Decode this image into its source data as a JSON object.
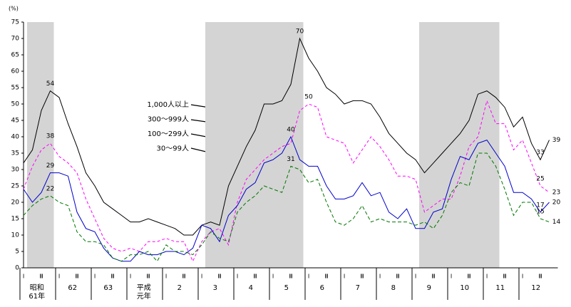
{
  "chart_data": {
    "type": "line",
    "y_label": "(%)",
    "ylim": [
      0,
      75
    ],
    "yticks": [
      0,
      5,
      10,
      15,
      20,
      25,
      30,
      35,
      40,
      45,
      50,
      55,
      60,
      65,
      70,
      75
    ],
    "categories": [
      "Ⅰ",
      null,
      "Ⅲ",
      null,
      "Ⅰ",
      null,
      "Ⅲ",
      null,
      "Ⅰ",
      null,
      "Ⅲ",
      null,
      "Ⅰ",
      null,
      "Ⅲ",
      null,
      "Ⅰ",
      null,
      "Ⅲ",
      null,
      "Ⅰ",
      null,
      "Ⅲ",
      null,
      "Ⅰ",
      null,
      "Ⅲ",
      null,
      "Ⅰ",
      null,
      "Ⅲ",
      null,
      "Ⅰ",
      null,
      "Ⅲ",
      null,
      "Ⅰ",
      null,
      "Ⅲ",
      null,
      "Ⅰ",
      null,
      "Ⅲ",
      null,
      "Ⅰ",
      null,
      "Ⅲ",
      null,
      "Ⅰ",
      null,
      "Ⅲ",
      null,
      "Ⅰ",
      null,
      "Ⅲ",
      null,
      "Ⅰ",
      null,
      "Ⅲ",
      null
    ],
    "year_labels": [
      [
        "昭和",
        "61年"
      ],
      [
        "62"
      ],
      [
        "63"
      ],
      [
        "平成",
        "元年"
      ],
      [
        "2"
      ],
      [
        "3"
      ],
      [
        "4"
      ],
      [
        "5"
      ],
      [
        "6"
      ],
      [
        "7"
      ],
      [
        "8"
      ],
      [
        "9"
      ],
      [
        "10"
      ],
      [
        "11"
      ],
      [
        "12"
      ]
    ],
    "shaded_periods": [
      [
        0,
        3
      ],
      [
        20,
        31
      ],
      [
        44,
        53
      ]
    ],
    "series": [
      {
        "name": "1,000人以上",
        "color": "#000000",
        "dash": "none",
        "values": [
          32,
          36,
          48,
          54,
          52,
          44,
          37,
          29,
          25,
          20,
          18,
          16,
          14,
          14,
          15,
          14,
          13,
          12,
          10,
          10,
          13,
          14,
          13,
          25,
          31,
          37,
          42,
          50,
          50,
          51,
          56,
          70,
          64,
          60,
          55,
          53,
          50,
          51,
          51,
          50,
          46,
          41,
          38,
          35,
          33,
          29,
          32,
          35,
          38,
          41,
          45,
          53,
          54,
          52,
          49,
          43,
          46,
          38,
          33,
          39
        ],
        "value_labels": [
          null,
          null,
          null,
          "54",
          null,
          null,
          null,
          null,
          null,
          null,
          null,
          null,
          null,
          null,
          null,
          null,
          null,
          null,
          null,
          null,
          null,
          null,
          null,
          null,
          null,
          null,
          null,
          null,
          null,
          null,
          null,
          "70",
          null,
          null,
          null,
          null,
          null,
          null,
          null,
          null,
          null,
          null,
          null,
          null,
          null,
          null,
          null,
          null,
          null,
          null,
          null,
          null,
          null,
          null,
          null,
          null,
          null,
          null,
          "33",
          "39"
        ]
      },
      {
        "name": "300～999人",
        "color": "#ff00ff",
        "dash": "4,3",
        "values": [
          24,
          31,
          36,
          38,
          34,
          32,
          29,
          21,
          15,
          9,
          6,
          5,
          6,
          5,
          8,
          8,
          9,
          8,
          8,
          2,
          8,
          11,
          12,
          7,
          20,
          27,
          30,
          33,
          35,
          37,
          38,
          48,
          50,
          49,
          40,
          39,
          38,
          32,
          36,
          40,
          37,
          33,
          28,
          28,
          27,
          17,
          19,
          21,
          21,
          28,
          37,
          40,
          51,
          44,
          44,
          36,
          39,
          32,
          25,
          23
        ],
        "value_labels": [
          null,
          null,
          null,
          "38",
          null,
          null,
          null,
          null,
          null,
          null,
          null,
          null,
          null,
          null,
          null,
          null,
          null,
          null,
          null,
          null,
          null,
          null,
          null,
          null,
          null,
          null,
          null,
          null,
          null,
          null,
          null,
          null,
          "50",
          null,
          null,
          null,
          null,
          null,
          null,
          null,
          null,
          null,
          null,
          null,
          null,
          null,
          null,
          null,
          null,
          null,
          null,
          null,
          null,
          null,
          null,
          null,
          null,
          null,
          "25",
          "23"
        ]
      },
      {
        "name": "100～299人",
        "color": "#0000cc",
        "dash": "none",
        "values": [
          24,
          20,
          23,
          29,
          29,
          28,
          17,
          12,
          11,
          6,
          3,
          2,
          2,
          5,
          4,
          4,
          5,
          5,
          4,
          6,
          13,
          12,
          8,
          16,
          19,
          24,
          26,
          32,
          33,
          35,
          40,
          33,
          31,
          31,
          25,
          21,
          21,
          22,
          26,
          22,
          23,
          17,
          15,
          18,
          12,
          12,
          17,
          18,
          27,
          34,
          33,
          38,
          39,
          35,
          31,
          23,
          23,
          21,
          17,
          20
        ],
        "value_labels": [
          null,
          null,
          null,
          "29",
          null,
          null,
          null,
          null,
          null,
          null,
          null,
          null,
          null,
          null,
          null,
          null,
          null,
          null,
          null,
          null,
          null,
          null,
          null,
          null,
          null,
          null,
          null,
          null,
          null,
          null,
          "40",
          null,
          null,
          null,
          null,
          null,
          null,
          null,
          null,
          null,
          null,
          null,
          null,
          null,
          null,
          null,
          null,
          null,
          null,
          null,
          null,
          null,
          null,
          null,
          null,
          null,
          null,
          null,
          "17",
          "20"
        ]
      },
      {
        "name": "30～99人",
        "color": "#007700",
        "dash": "5,3",
        "values": [
          16,
          19,
          21,
          22,
          20,
          19,
          11,
          8,
          8,
          7,
          3,
          2,
          4,
          4,
          5,
          2,
          7,
          5,
          5,
          4,
          7,
          11,
          9,
          8,
          17,
          20,
          22,
          25,
          24,
          23,
          31,
          30,
          26,
          27,
          20,
          14,
          13,
          15,
          19,
          14,
          15,
          14,
          14,
          14,
          13,
          14,
          12,
          16,
          23,
          26,
          25,
          35,
          35,
          31,
          24,
          16,
          20,
          20,
          15,
          14
        ],
        "value_labels": [
          null,
          null,
          null,
          "22",
          null,
          null,
          null,
          null,
          null,
          null,
          null,
          null,
          null,
          null,
          null,
          null,
          null,
          null,
          null,
          null,
          null,
          null,
          null,
          null,
          null,
          null,
          null,
          null,
          null,
          null,
          "31",
          null,
          null,
          null,
          null,
          null,
          null,
          null,
          null,
          null,
          null,
          null,
          null,
          null,
          null,
          null,
          null,
          null,
          null,
          null,
          null,
          null,
          null,
          null,
          null,
          null,
          null,
          null,
          "15",
          "14"
        ]
      }
    ]
  }
}
